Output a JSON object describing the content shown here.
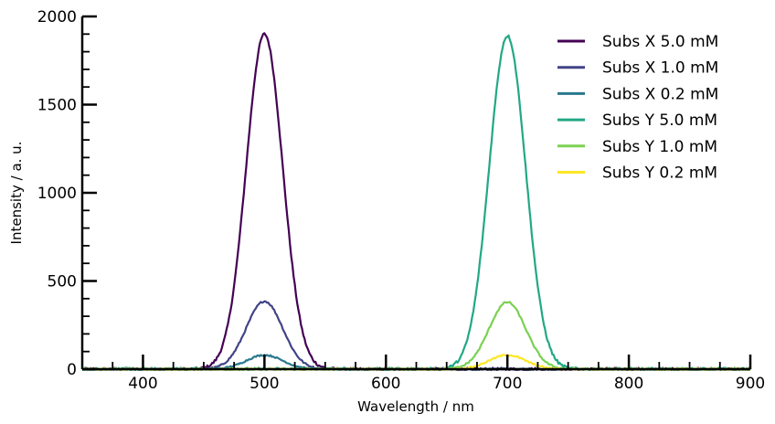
{
  "chart_data": {
    "type": "line",
    "xlabel": "Wavelength / nm",
    "ylabel": "Intensity / a. u.",
    "xlim": [
      350,
      900
    ],
    "ylim": [
      0,
      2000
    ],
    "x_ticks": [
      400,
      500,
      600,
      700,
      800,
      900
    ],
    "y_ticks": [
      0,
      500,
      1000,
      1500,
      2000
    ],
    "grid": false,
    "legend_position": "top-right",
    "series": [
      {
        "name": "Subs X 5.0 mM",
        "color": "#440154",
        "center": 500,
        "sigma": 15,
        "peak": 1900,
        "noise": 8
      },
      {
        "name": "Subs X 1.0 mM",
        "color": "#414487",
        "center": 500,
        "sigma": 15,
        "peak": 385,
        "noise": 5
      },
      {
        "name": "Subs X 0.2 mM",
        "color": "#2a788e",
        "center": 500,
        "sigma": 15,
        "peak": 80,
        "noise": 4
      },
      {
        "name": "Subs Y 5.0 mM",
        "color": "#22a884",
        "center": 700,
        "sigma": 15,
        "peak": 1890,
        "noise": 8
      },
      {
        "name": "Subs Y 1.0 mM",
        "color": "#7ad151",
        "center": 700,
        "sigma": 15,
        "peak": 380,
        "noise": 5
      },
      {
        "name": "Subs Y 0.2 mM",
        "color": "#fde725",
        "center": 700,
        "sigma": 15,
        "peak": 80,
        "noise": 4
      }
    ]
  }
}
